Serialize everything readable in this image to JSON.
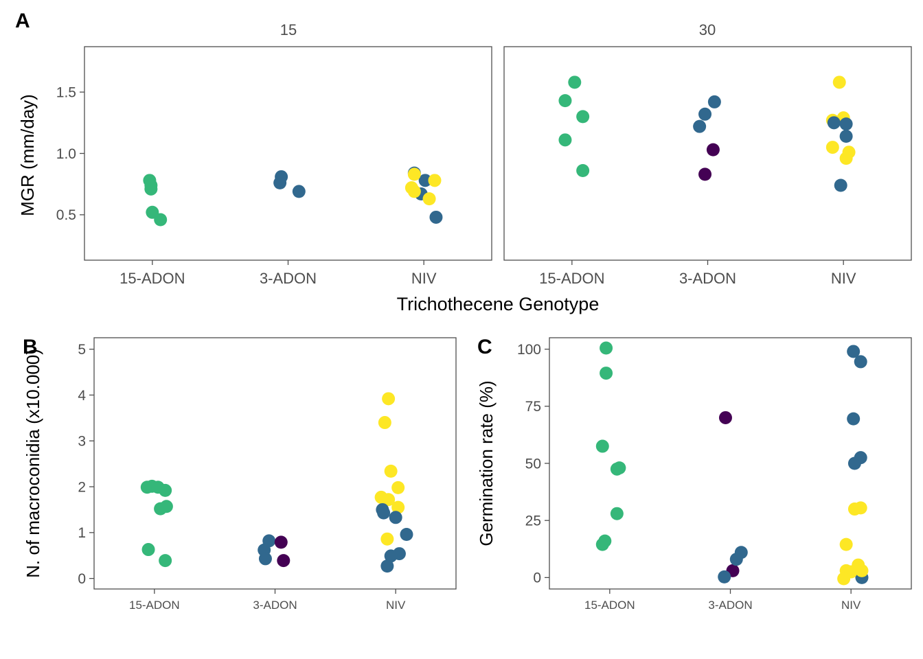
{
  "colors": {
    "15-ADON": "#35B779",
    "3-ADON": "#31688E",
    "NIV": "#FDE725",
    "other": "#440154",
    "axis": "#4d4d4d",
    "frame": "#4d4d4d"
  },
  "panel_tags": {
    "a": "A",
    "b": "B",
    "c": "C"
  },
  "chart_data": [
    {
      "id": "A",
      "type": "scatter",
      "facets": [
        "15",
        "30"
      ],
      "categories": [
        "15-ADON",
        "3-ADON",
        "NIV"
      ],
      "xlabel": "Trichothecene Genotype",
      "ylabel": "MGR (mm/day)",
      "ylim": [
        0.13,
        1.87
      ],
      "yticks": [
        0.5,
        1.0,
        1.5
      ],
      "ytick_labels": [
        "0.5",
        "1.0",
        "1.5"
      ],
      "grid": false,
      "points": [
        {
          "facet": "15",
          "x": "15-ADON",
          "offset": -0.02,
          "y": 0.78,
          "group": "15-ADON"
        },
        {
          "facet": "15",
          "x": "15-ADON",
          "offset": -0.01,
          "y": 0.74,
          "group": "15-ADON"
        },
        {
          "facet": "15",
          "x": "15-ADON",
          "offset": -0.01,
          "y": 0.71,
          "group": "15-ADON"
        },
        {
          "facet": "15",
          "x": "15-ADON",
          "offset": 0.0,
          "y": 0.52,
          "group": "15-ADON"
        },
        {
          "facet": "15",
          "x": "15-ADON",
          "offset": 0.06,
          "y": 0.46,
          "group": "15-ADON"
        },
        {
          "facet": "15",
          "x": "3-ADON",
          "offset": -0.05,
          "y": 0.81,
          "group": "3-ADON"
        },
        {
          "facet": "15",
          "x": "3-ADON",
          "offset": -0.06,
          "y": 0.76,
          "group": "3-ADON"
        },
        {
          "facet": "15",
          "x": "3-ADON",
          "offset": 0.08,
          "y": 0.69,
          "group": "3-ADON"
        },
        {
          "facet": "15",
          "x": "NIV",
          "offset": -0.07,
          "y": 0.84,
          "group": "3-ADON"
        },
        {
          "facet": "15",
          "x": "NIV",
          "offset": 0.01,
          "y": 0.78,
          "group": "3-ADON"
        },
        {
          "facet": "15",
          "x": "NIV",
          "offset": -0.02,
          "y": 0.67,
          "group": "3-ADON"
        },
        {
          "facet": "15",
          "x": "NIV",
          "offset": 0.09,
          "y": 0.48,
          "group": "3-ADON"
        },
        {
          "facet": "15",
          "x": "NIV",
          "offset": -0.07,
          "y": 0.83,
          "group": "NIV"
        },
        {
          "facet": "15",
          "x": "NIV",
          "offset": 0.08,
          "y": 0.78,
          "group": "NIV"
        },
        {
          "facet": "15",
          "x": "NIV",
          "offset": -0.09,
          "y": 0.72,
          "group": "NIV"
        },
        {
          "facet": "15",
          "x": "NIV",
          "offset": -0.07,
          "y": 0.69,
          "group": "NIV"
        },
        {
          "facet": "15",
          "x": "NIV",
          "offset": 0.04,
          "y": 0.63,
          "group": "NIV"
        },
        {
          "facet": "30",
          "x": "15-ADON",
          "offset": 0.02,
          "y": 1.58,
          "group": "15-ADON"
        },
        {
          "facet": "30",
          "x": "15-ADON",
          "offset": -0.05,
          "y": 1.43,
          "group": "15-ADON"
        },
        {
          "facet": "30",
          "x": "15-ADON",
          "offset": 0.08,
          "y": 1.3,
          "group": "15-ADON"
        },
        {
          "facet": "30",
          "x": "15-ADON",
          "offset": -0.05,
          "y": 1.11,
          "group": "15-ADON"
        },
        {
          "facet": "30",
          "x": "15-ADON",
          "offset": 0.08,
          "y": 0.86,
          "group": "15-ADON"
        },
        {
          "facet": "30",
          "x": "3-ADON",
          "offset": 0.05,
          "y": 1.42,
          "group": "3-ADON"
        },
        {
          "facet": "30",
          "x": "3-ADON",
          "offset": -0.02,
          "y": 1.32,
          "group": "3-ADON"
        },
        {
          "facet": "30",
          "x": "3-ADON",
          "offset": -0.06,
          "y": 1.22,
          "group": "3-ADON"
        },
        {
          "facet": "30",
          "x": "3-ADON",
          "offset": 0.04,
          "y": 1.03,
          "group": "other"
        },
        {
          "facet": "30",
          "x": "3-ADON",
          "offset": -0.02,
          "y": 0.83,
          "group": "other"
        },
        {
          "facet": "30",
          "x": "NIV",
          "offset": -0.08,
          "y": 1.27,
          "group": "NIV"
        },
        {
          "facet": "30",
          "x": "NIV",
          "offset": 0.0,
          "y": 1.29,
          "group": "NIV"
        },
        {
          "facet": "30",
          "x": "NIV",
          "offset": -0.03,
          "y": 1.58,
          "group": "NIV"
        },
        {
          "facet": "30",
          "x": "NIV",
          "offset": -0.08,
          "y": 1.05,
          "group": "NIV"
        },
        {
          "facet": "30",
          "x": "NIV",
          "offset": 0.04,
          "y": 1.01,
          "group": "NIV"
        },
        {
          "facet": "30",
          "x": "NIV",
          "offset": 0.02,
          "y": 0.96,
          "group": "NIV"
        },
        {
          "facet": "30",
          "x": "NIV",
          "offset": -0.07,
          "y": 1.25,
          "group": "3-ADON"
        },
        {
          "facet": "30",
          "x": "NIV",
          "offset": 0.02,
          "y": 1.24,
          "group": "3-ADON"
        },
        {
          "facet": "30",
          "x": "NIV",
          "offset": 0.02,
          "y": 1.14,
          "group": "3-ADON"
        },
        {
          "facet": "30",
          "x": "NIV",
          "offset": -0.02,
          "y": 0.74,
          "group": "3-ADON"
        }
      ]
    },
    {
      "id": "B",
      "type": "scatter",
      "categories": [
        "15-ADON",
        "3-ADON",
        "NIV"
      ],
      "xlabel": "",
      "ylabel": "N. of macroconidia (x10.000)",
      "ylim": [
        -0.23,
        5.25
      ],
      "yticks": [
        0,
        1,
        2,
        3,
        4,
        5
      ],
      "ytick_labels": [
        "0",
        "1",
        "2",
        "3",
        "4",
        "5"
      ],
      "grid": false,
      "points": [
        {
          "x": "15-ADON",
          "offset": -0.06,
          "y": 1.99,
          "group": "15-ADON"
        },
        {
          "x": "15-ADON",
          "offset": -0.02,
          "y": 2.01,
          "group": "15-ADON"
        },
        {
          "x": "15-ADON",
          "offset": 0.03,
          "y": 1.99,
          "group": "15-ADON"
        },
        {
          "x": "15-ADON",
          "offset": 0.09,
          "y": 1.92,
          "group": "15-ADON"
        },
        {
          "x": "15-ADON",
          "offset": 0.1,
          "y": 1.57,
          "group": "15-ADON"
        },
        {
          "x": "15-ADON",
          "offset": 0.05,
          "y": 1.52,
          "group": "15-ADON"
        },
        {
          "x": "15-ADON",
          "offset": -0.05,
          "y": 0.63,
          "group": "15-ADON"
        },
        {
          "x": "15-ADON",
          "offset": 0.09,
          "y": 0.39,
          "group": "15-ADON"
        },
        {
          "x": "3-ADON",
          "offset": -0.05,
          "y": 0.82,
          "group": "3-ADON"
        },
        {
          "x": "3-ADON",
          "offset": -0.09,
          "y": 0.62,
          "group": "3-ADON"
        },
        {
          "x": "3-ADON",
          "offset": -0.08,
          "y": 0.43,
          "group": "3-ADON"
        },
        {
          "x": "3-ADON",
          "offset": 0.05,
          "y": 0.79,
          "group": "other"
        },
        {
          "x": "3-ADON",
          "offset": 0.07,
          "y": 0.39,
          "group": "other"
        },
        {
          "x": "NIV",
          "offset": -0.06,
          "y": 3.92,
          "group": "NIV"
        },
        {
          "x": "NIV",
          "offset": -0.09,
          "y": 3.4,
          "group": "NIV"
        },
        {
          "x": "NIV",
          "offset": -0.04,
          "y": 2.34,
          "group": "NIV"
        },
        {
          "x": "NIV",
          "offset": 0.02,
          "y": 1.98,
          "group": "NIV"
        },
        {
          "x": "NIV",
          "offset": -0.12,
          "y": 1.77,
          "group": "NIV"
        },
        {
          "x": "NIV",
          "offset": -0.06,
          "y": 1.72,
          "group": "NIV"
        },
        {
          "x": "NIV",
          "offset": 0.02,
          "y": 1.55,
          "group": "NIV"
        },
        {
          "x": "NIV",
          "offset": -0.07,
          "y": 0.86,
          "group": "NIV"
        },
        {
          "x": "NIV",
          "offset": -0.11,
          "y": 1.5,
          "group": "3-ADON"
        },
        {
          "x": "NIV",
          "offset": -0.1,
          "y": 1.43,
          "group": "3-ADON"
        },
        {
          "x": "NIV",
          "offset": 0.0,
          "y": 1.33,
          "group": "3-ADON"
        },
        {
          "x": "NIV",
          "offset": 0.09,
          "y": 0.96,
          "group": "3-ADON"
        },
        {
          "x": "NIV",
          "offset": 0.03,
          "y": 0.54,
          "group": "3-ADON"
        },
        {
          "x": "NIV",
          "offset": -0.04,
          "y": 0.49,
          "group": "3-ADON"
        },
        {
          "x": "NIV",
          "offset": -0.07,
          "y": 0.27,
          "group": "3-ADON"
        }
      ]
    },
    {
      "id": "C",
      "type": "scatter",
      "categories": [
        "15-ADON",
        "3-ADON",
        "NIV"
      ],
      "xlabel": "",
      "ylabel": "Germination rate (%)",
      "ylim": [
        -5,
        105
      ],
      "yticks": [
        0,
        25,
        50,
        75,
        100
      ],
      "ytick_labels": [
        "0",
        "25",
        "50",
        "75",
        "100"
      ],
      "grid": false,
      "points": [
        {
          "x": "15-ADON",
          "offset": -0.03,
          "y": 100.5,
          "group": "15-ADON"
        },
        {
          "x": "15-ADON",
          "offset": -0.03,
          "y": 89.5,
          "group": "15-ADON"
        },
        {
          "x": "15-ADON",
          "offset": -0.06,
          "y": 57.5,
          "group": "15-ADON"
        },
        {
          "x": "15-ADON",
          "offset": 0.06,
          "y": 47.5,
          "group": "15-ADON"
        },
        {
          "x": "15-ADON",
          "offset": 0.08,
          "y": 48,
          "group": "15-ADON"
        },
        {
          "x": "15-ADON",
          "offset": 0.06,
          "y": 28,
          "group": "15-ADON"
        },
        {
          "x": "15-ADON",
          "offset": -0.04,
          "y": 16,
          "group": "15-ADON"
        },
        {
          "x": "15-ADON",
          "offset": -0.06,
          "y": 14.5,
          "group": "15-ADON"
        },
        {
          "x": "3-ADON",
          "offset": -0.04,
          "y": 70,
          "group": "other"
        },
        {
          "x": "3-ADON",
          "offset": 0.02,
          "y": 3,
          "group": "other"
        },
        {
          "x": "3-ADON",
          "offset": 0.09,
          "y": 11,
          "group": "3-ADON"
        },
        {
          "x": "3-ADON",
          "offset": 0.05,
          "y": 8,
          "group": "3-ADON"
        },
        {
          "x": "3-ADON",
          "offset": -0.05,
          "y": 0.3,
          "group": "3-ADON"
        },
        {
          "x": "NIV",
          "offset": 0.02,
          "y": 99,
          "group": "3-ADON"
        },
        {
          "x": "NIV",
          "offset": 0.08,
          "y": 94.5,
          "group": "3-ADON"
        },
        {
          "x": "NIV",
          "offset": 0.02,
          "y": 69.5,
          "group": "3-ADON"
        },
        {
          "x": "NIV",
          "offset": 0.08,
          "y": 52.5,
          "group": "3-ADON"
        },
        {
          "x": "NIV",
          "offset": 0.03,
          "y": 50,
          "group": "3-ADON"
        },
        {
          "x": "NIV",
          "offset": 0.09,
          "y": 0,
          "group": "3-ADON"
        },
        {
          "x": "NIV",
          "offset": 0.03,
          "y": 30,
          "group": "NIV"
        },
        {
          "x": "NIV",
          "offset": 0.08,
          "y": 30.5,
          "group": "NIV"
        },
        {
          "x": "NIV",
          "offset": -0.04,
          "y": 14.5,
          "group": "NIV"
        },
        {
          "x": "NIV",
          "offset": 0.06,
          "y": 5.5,
          "group": "NIV"
        },
        {
          "x": "NIV",
          "offset": -0.04,
          "y": 3,
          "group": "NIV"
        },
        {
          "x": "NIV",
          "offset": 0.09,
          "y": 3,
          "group": "NIV"
        },
        {
          "x": "NIV",
          "offset": 0.0,
          "y": 2.5,
          "group": "NIV"
        },
        {
          "x": "NIV",
          "offset": -0.06,
          "y": -0.5,
          "group": "NIV"
        }
      ]
    }
  ]
}
